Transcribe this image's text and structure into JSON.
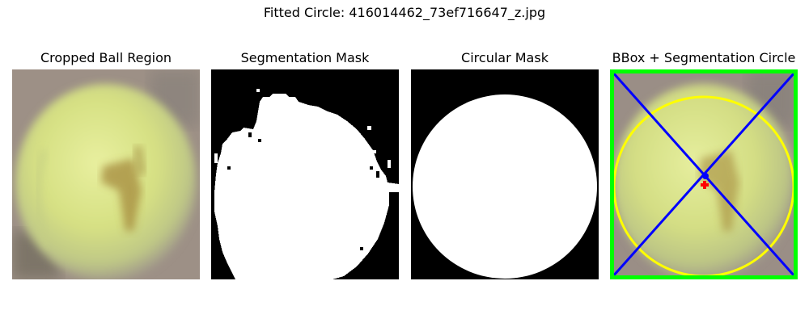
{
  "figure": {
    "title": "Fitted Circle: 416014462_73ef716647_z.jpg"
  },
  "panels": [
    {
      "title": "Cropped Ball Region"
    },
    {
      "title": "Segmentation Mask"
    },
    {
      "title": "Circular Mask"
    },
    {
      "title": "BBox + Segmentation Circle"
    }
  ],
  "colors": {
    "bbox": "#00ff00",
    "circle": "#ffff00",
    "diagonals": "#0000ff",
    "center": "#ff0000",
    "ball": "#dfe89a",
    "background": "#9c8f86"
  }
}
